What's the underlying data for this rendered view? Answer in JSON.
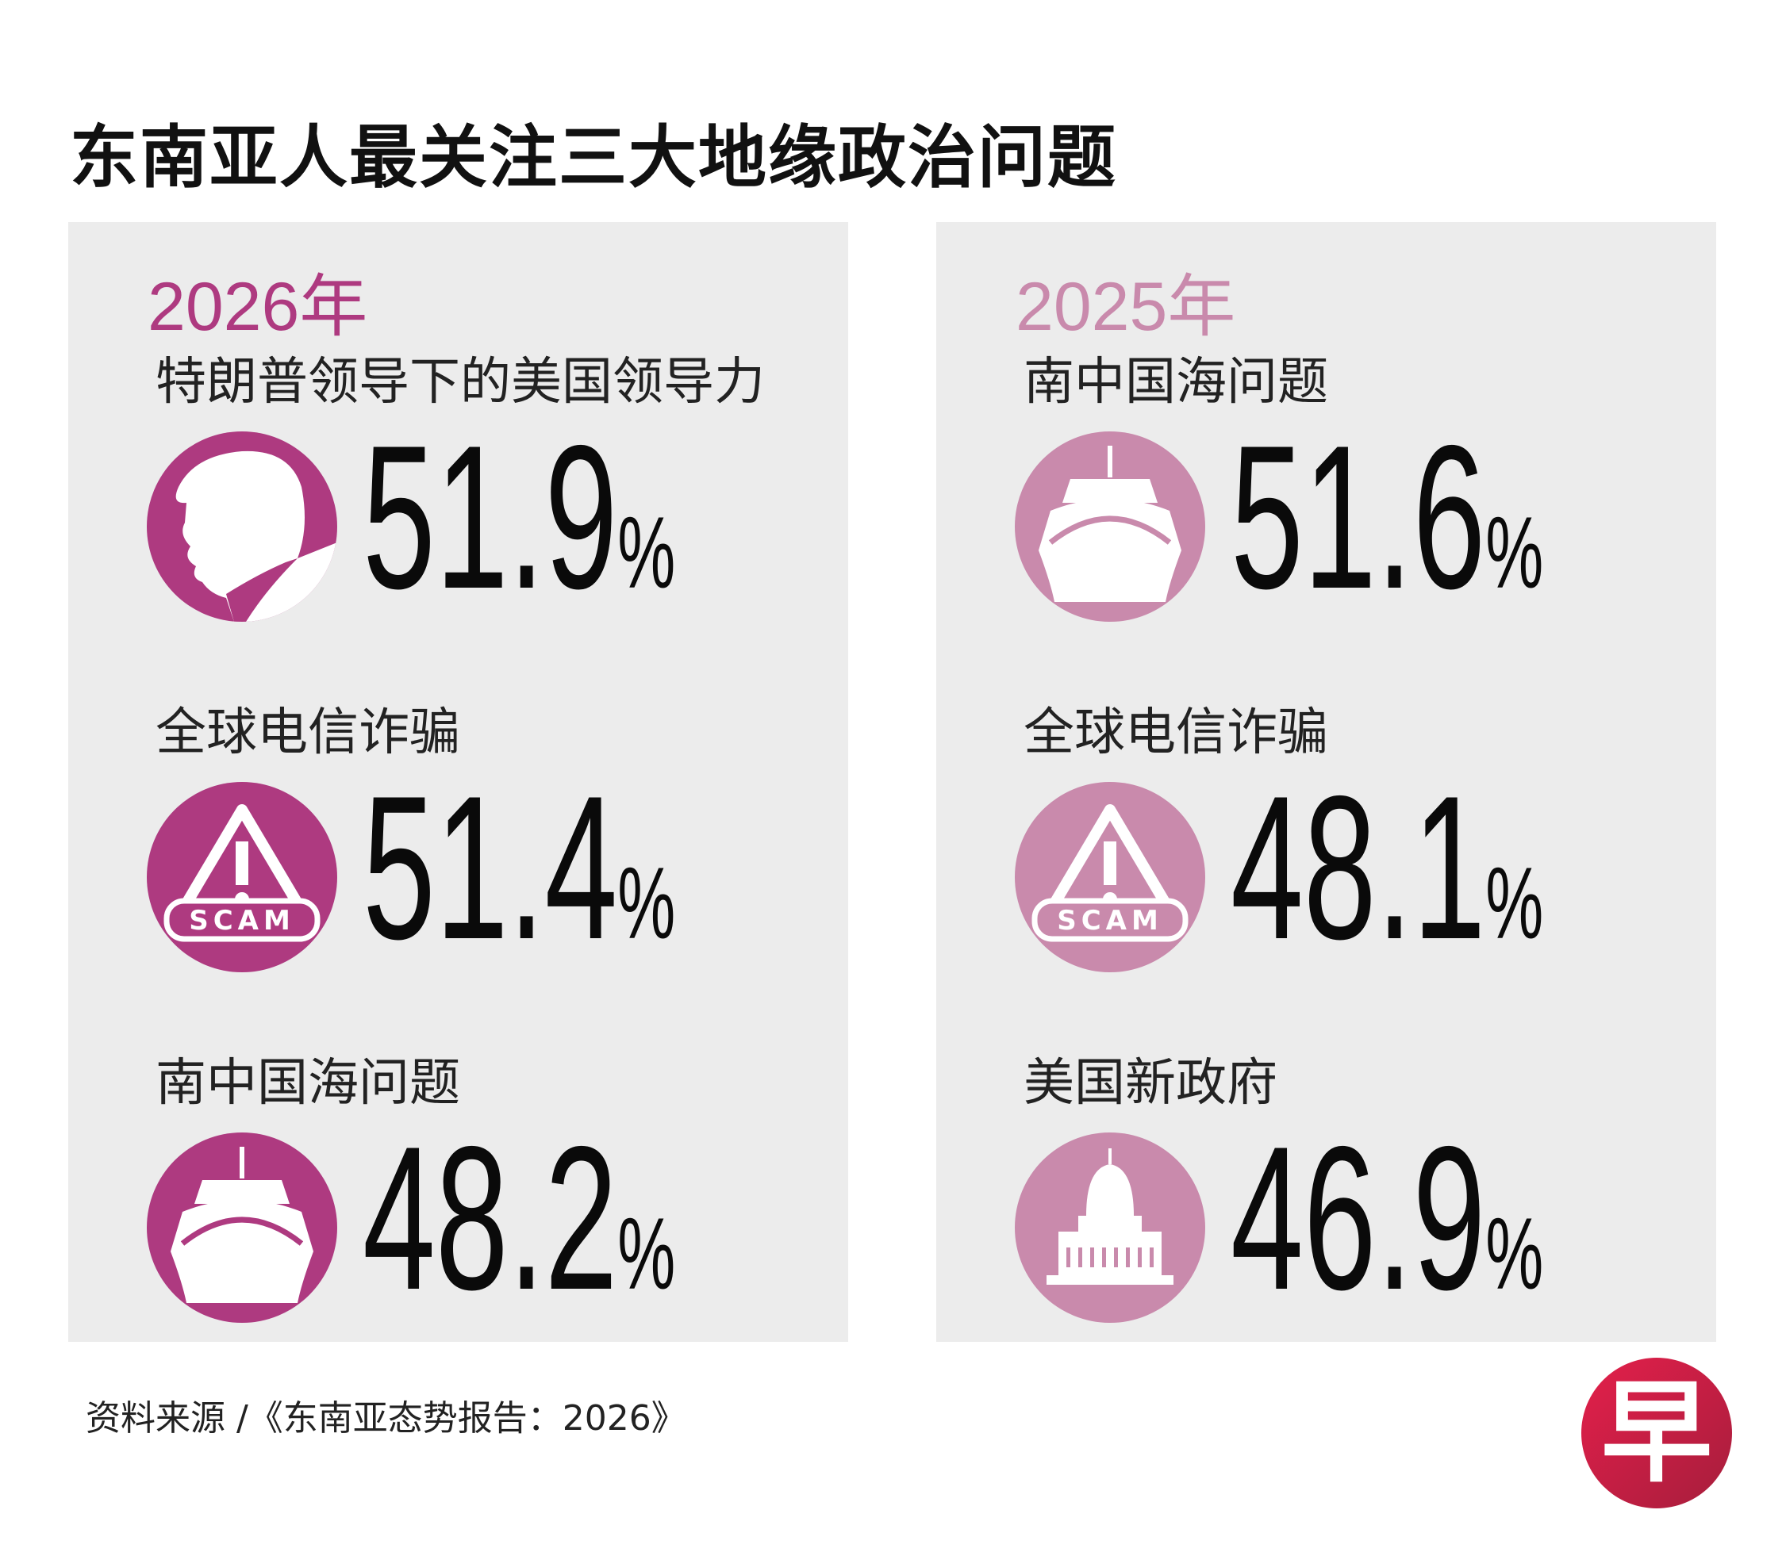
{
  "title": "东南亚人最关注三大地缘政治问题",
  "colors": {
    "year_2026": "#ae3a80",
    "year_2025": "#c98aac",
    "panel_bg": "#ececec",
    "logo": "#d81f45"
  },
  "panels": [
    {
      "year": "2026年",
      "items": [
        {
          "label": "特朗普领导下的美国领导力",
          "value": "51.9",
          "unit": "%",
          "icon": "trump-profile-icon"
        },
        {
          "label": "全球电信诈骗",
          "value": "51.4",
          "unit": "%",
          "icon": "scam-warning-icon"
        },
        {
          "label": "南中国海问题",
          "value": "48.2",
          "unit": "%",
          "icon": "ship-icon"
        }
      ]
    },
    {
      "year": "2025年",
      "items": [
        {
          "label": "南中国海问题",
          "value": "51.6",
          "unit": "%",
          "icon": "ship-icon"
        },
        {
          "label": "全球电信诈骗",
          "value": "48.1",
          "unit": "%",
          "icon": "scam-warning-icon"
        },
        {
          "label": "美国新政府",
          "value": "46.9",
          "unit": "%",
          "icon": "capitol-icon"
        }
      ]
    }
  ],
  "source": "资料来源 /《东南亚态势报告：2026》",
  "logo": {
    "text": "早",
    "icon": "zaobao-logo"
  }
}
